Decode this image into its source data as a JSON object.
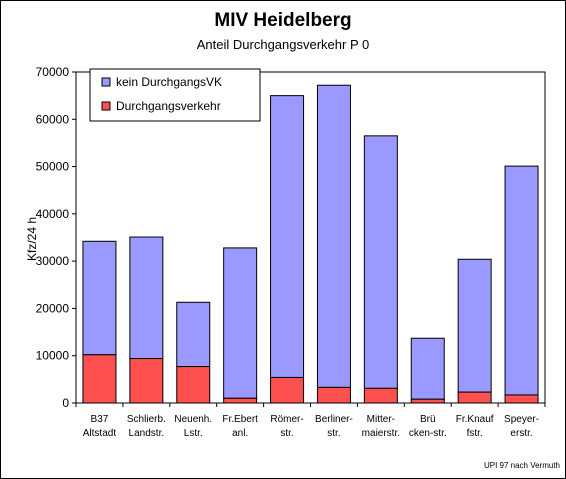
{
  "chart_data": {
    "type": "bar",
    "stacked": true,
    "title": "MIV Heidelberg",
    "subtitle": "Anteil Durchgangsverkehr P 0",
    "ylabel": "Kfz/24 h",
    "xlabel": "",
    "ylim": [
      0,
      70000
    ],
    "yticks": [
      "0",
      "10000",
      "20000",
      "30000",
      "40000",
      "50000",
      "60000",
      "70000"
    ],
    "grid": false,
    "legend_position": "top-left",
    "categories": [
      [
        "B37",
        "Altstadt"
      ],
      [
        "Schlierb.",
        "Landstr."
      ],
      [
        "Neuenh.",
        "Lstr."
      ],
      [
        "Fr.Ebert",
        "anl."
      ],
      [
        "Römer-",
        "str."
      ],
      [
        "Berliner-",
        "str."
      ],
      [
        "Mitter-",
        "maierstr."
      ],
      [
        "Brü",
        "cken-str."
      ],
      [
        "Fr.Knauf",
        "fstr."
      ],
      [
        "Speyer-",
        "erstr."
      ]
    ],
    "series": [
      {
        "name": "Durchgangsverkehr",
        "color": "#ff5050",
        "values": [
          10200,
          9400,
          7700,
          1000,
          5400,
          3300,
          3100,
          800,
          2300,
          1700
        ]
      },
      {
        "name": "kein DurchgangsVK",
        "color": "#9999ff",
        "values": [
          24000,
          25700,
          13600,
          31800,
          59600,
          63900,
          53400,
          12900,
          28100,
          48400
        ]
      }
    ],
    "source": "UPI 97 nach Vermuth"
  }
}
